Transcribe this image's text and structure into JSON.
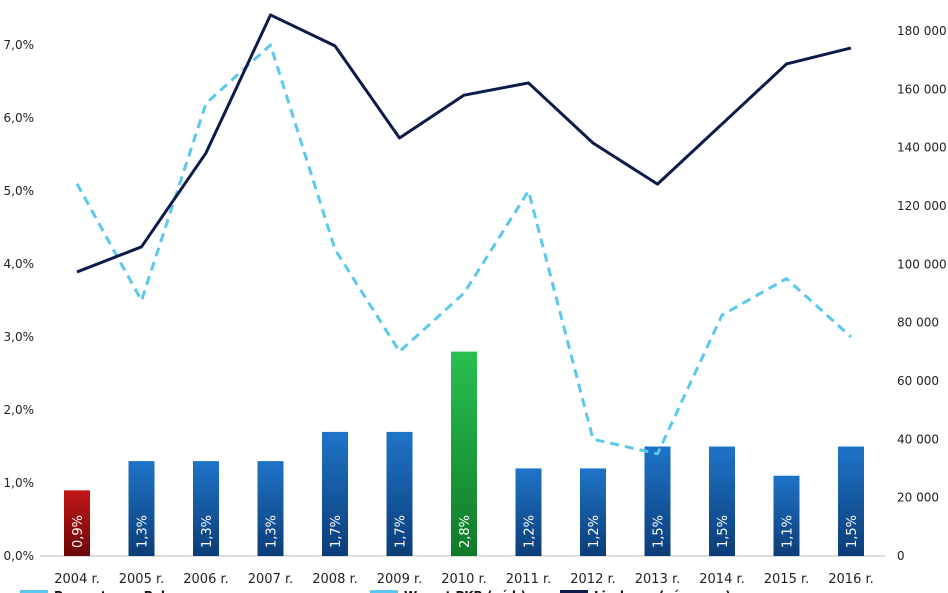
{
  "chart_data": {
    "type": "bar+line",
    "title": "",
    "categories": [
      "2004 r.",
      "2005 r.",
      "2006 r.",
      "2007 r.",
      "2008 r.",
      "2009 r.",
      "2010 r.",
      "2011 r.",
      "2012 r.",
      "2013 r.",
      "2014 r.",
      "2015 r.",
      "2016 r."
    ],
    "left_axis": {
      "ticks": [
        "0,0%",
        "1,0%",
        "2,0%",
        "3,0%",
        "4,0%",
        "5,0%",
        "6,0%",
        "7,0%"
      ],
      "range": [
        0,
        7
      ]
    },
    "right_axis": {
      "ticks": [
        "0",
        "20 000",
        "40 000",
        "60 000",
        "80 000",
        "100 000",
        "120 000",
        "140 000",
        "160 000",
        "180 000"
      ],
      "range": [
        0,
        180000
      ]
    },
    "series": [
      {
        "name": "Procent ... w Polsce",
        "type": "bar",
        "axis": "left",
        "values": [
          0.9,
          1.3,
          1.3,
          1.3,
          1.7,
          1.7,
          2.8,
          1.2,
          1.2,
          1.5,
          1.5,
          1.1,
          1.5
        ],
        "labels": [
          "0,9%",
          "1,3%",
          "1,3%",
          "1,3%",
          "1,7%",
          "1,7%",
          "2,8%",
          "1,2%",
          "1,2%",
          "1,5%",
          "1,5%",
          "1,1%",
          "1,5%"
        ],
        "color": "#1a66b8",
        "highlight": {
          "0": "#b01010",
          "6": "#1faa3c"
        }
      },
      {
        "name": "Wzrost PKB (oś l.)",
        "type": "line",
        "style": "dashed",
        "axis": "left",
        "values": [
          5.1,
          3.5,
          6.2,
          7.0,
          4.2,
          2.8,
          3.6,
          5.0,
          1.6,
          1.4,
          3.3,
          3.8,
          3.0
        ],
        "color": "#5bc8ef"
      },
      {
        "name": "Liczba ... (oś prawa)",
        "type": "line",
        "style": "solid",
        "axis": "right",
        "values": [
          97400,
          106000,
          138200,
          185500,
          174900,
          143300,
          158000,
          162200,
          141600,
          127500,
          148100,
          168700,
          174200
        ],
        "color": "#0d1b4a"
      }
    ],
    "legend": {
      "placement": "bottom"
    },
    "grid": false
  }
}
